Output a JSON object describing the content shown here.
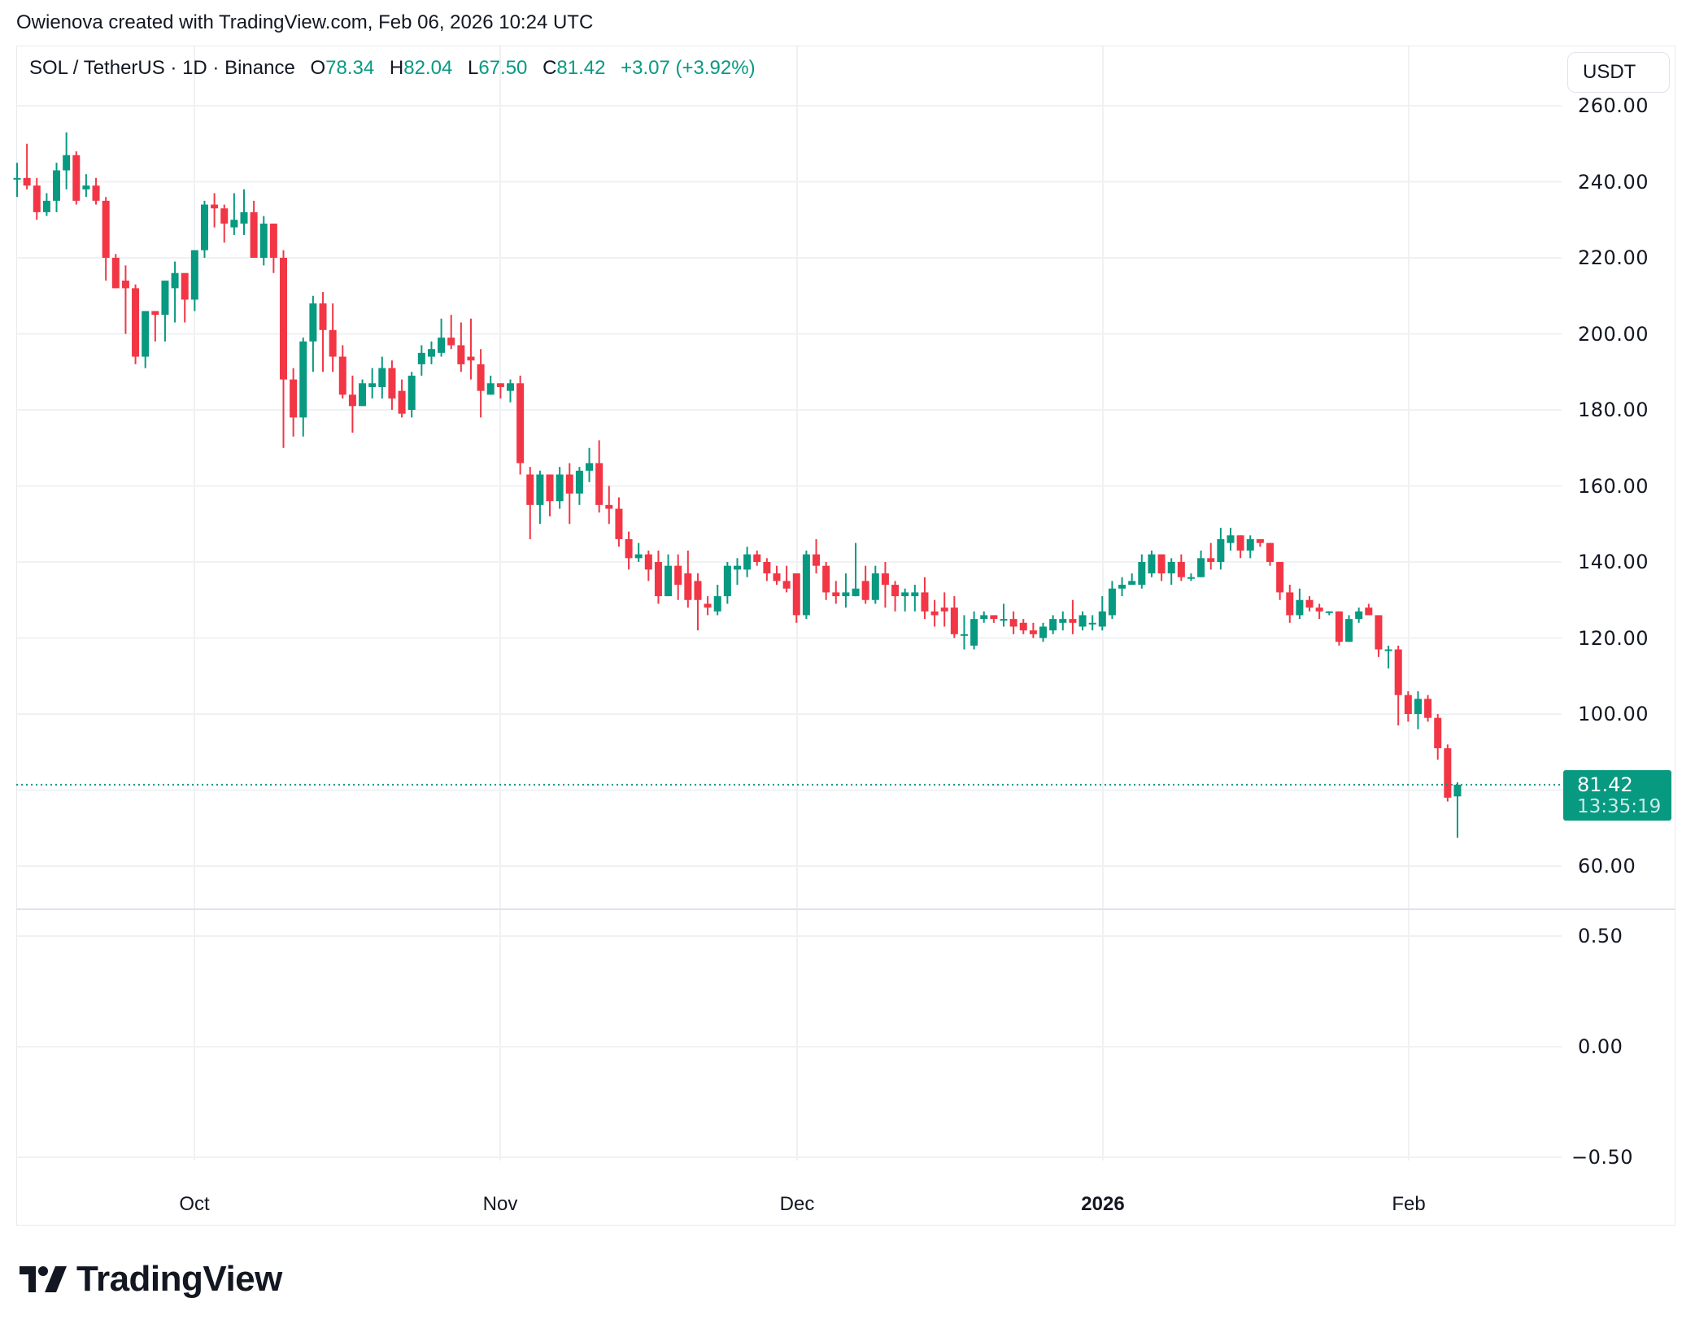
{
  "attribution": "Owienova created with TradingView.com, Feb 06, 2026 10:24 UTC",
  "legend": {
    "symbol": "SOL / TetherUS · 1D · Binance",
    "open_label": "O",
    "open": "78.34",
    "high_label": "H",
    "high": "82.04",
    "low_label": "L",
    "low": "67.50",
    "close_label": "C",
    "close": "81.42",
    "change": "+3.07 (+3.92%)"
  },
  "currency_button": "USDT",
  "price_axis": [
    "260.00",
    "240.00",
    "220.00",
    "200.00",
    "180.00",
    "160.00",
    "140.00",
    "120.00",
    "100.00",
    "60.00"
  ],
  "indicator_axis": [
    "0.50",
    "0.00",
    "−0.50"
  ],
  "time_axis": [
    {
      "label": "Oct",
      "bold": false
    },
    {
      "label": "Nov",
      "bold": false
    },
    {
      "label": "Dec",
      "bold": false
    },
    {
      "label": "2026",
      "bold": true
    },
    {
      "label": "Feb",
      "bold": false
    }
  ],
  "last_price_tag": {
    "price": "81.42",
    "countdown": "13:35:19"
  },
  "colors": {
    "up": "#089981",
    "down": "#F23645",
    "grid": "#F0F1F3",
    "text": "#131722"
  },
  "logo_text": "TradingView",
  "chart_data": {
    "type": "candlestick",
    "title": "SOL / TetherUS · 1D · Binance",
    "xlabel": "",
    "ylabel": "USDT",
    "ylim": [
      52,
      268
    ],
    "grid": true,
    "x_ticks": [
      "Oct",
      "Nov",
      "Dec",
      "2026",
      "Feb"
    ],
    "y_ticks": [
      60,
      100,
      120,
      140,
      160,
      180,
      200,
      220,
      240,
      260
    ],
    "last_close": 81.42,
    "start_date": "Sep 13",
    "end_date": "Feb 06",
    "ohlc": [
      [
        241,
        245,
        236,
        241
      ],
      [
        241,
        250,
        238,
        239
      ],
      [
        239,
        241,
        230,
        232
      ],
      [
        232,
        237,
        231,
        235
      ],
      [
        235,
        245,
        232,
        243
      ],
      [
        243,
        253,
        238,
        247
      ],
      [
        247,
        248,
        234,
        235
      ],
      [
        238,
        242,
        236,
        239
      ],
      [
        239,
        241,
        234,
        235
      ],
      [
        235,
        236,
        214,
        220
      ],
      [
        220,
        221,
        212,
        212
      ],
      [
        214,
        218,
        200,
        212
      ],
      [
        212,
        213,
        192,
        194
      ],
      [
        194,
        206,
        191,
        206
      ],
      [
        206,
        206,
        198,
        205
      ],
      [
        205,
        214,
        198,
        214
      ],
      [
        212,
        219,
        203,
        216
      ],
      [
        216,
        215,
        203,
        209
      ],
      [
        209,
        222,
        206,
        222
      ],
      [
        222,
        235,
        220,
        234
      ],
      [
        234,
        237,
        228,
        233
      ],
      [
        233,
        234,
        224,
        229
      ],
      [
        228,
        237,
        226,
        230
      ],
      [
        229,
        238,
        226,
        232
      ],
      [
        232,
        235,
        220,
        220
      ],
      [
        220,
        231,
        218,
        229
      ],
      [
        229,
        229,
        216,
        220
      ],
      [
        220,
        222,
        170,
        188
      ],
      [
        188,
        191,
        173,
        178
      ],
      [
        178,
        199,
        173,
        198
      ],
      [
        198,
        210,
        190,
        208
      ],
      [
        208,
        211,
        190,
        201
      ],
      [
        201,
        208,
        190,
        194
      ],
      [
        194,
        197,
        183,
        184
      ],
      [
        184,
        189,
        174,
        181
      ],
      [
        181,
        188,
        181,
        187
      ],
      [
        186,
        191,
        183,
        187
      ],
      [
        186,
        194,
        183,
        191
      ],
      [
        191,
        193,
        180,
        183
      ],
      [
        185,
        188,
        178,
        179
      ],
      [
        180,
        190,
        178,
        189
      ],
      [
        192,
        197,
        189,
        195
      ],
      [
        194,
        198,
        192,
        196
      ],
      [
        195,
        204,
        194,
        199
      ],
      [
        199,
        205,
        196,
        197
      ],
      [
        197,
        203,
        190,
        192
      ],
      [
        194,
        204,
        188,
        193
      ],
      [
        192,
        196,
        178,
        185
      ],
      [
        184,
        189,
        184,
        187
      ],
      [
        187,
        187,
        183,
        186
      ],
      [
        185,
        188,
        182,
        187
      ],
      [
        187,
        189,
        163,
        166
      ],
      [
        163,
        165,
        146,
        155
      ],
      [
        155,
        164,
        150,
        163
      ],
      [
        163,
        163,
        152,
        156
      ],
      [
        156,
        165,
        154,
        163
      ],
      [
        163,
        166,
        150,
        158
      ],
      [
        158,
        165,
        155,
        164
      ],
      [
        164,
        170,
        161,
        166
      ],
      [
        166,
        172,
        153,
        155
      ],
      [
        155,
        160,
        150,
        154
      ],
      [
        154,
        157,
        144,
        146
      ],
      [
        146,
        148,
        138,
        141
      ],
      [
        141,
        145,
        140,
        142
      ],
      [
        142,
        143,
        135,
        138
      ],
      [
        140,
        143,
        129,
        131
      ],
      [
        131,
        142,
        131,
        139
      ],
      [
        139,
        142,
        130,
        134
      ],
      [
        137,
        143,
        128,
        130
      ],
      [
        135,
        137,
        122,
        130
      ],
      [
        129,
        131,
        126,
        128
      ],
      [
        127,
        134,
        126,
        131
      ],
      [
        131,
        140,
        129,
        139
      ],
      [
        138,
        141,
        134,
        139
      ],
      [
        138,
        144,
        136,
        142
      ],
      [
        142,
        143,
        139,
        140
      ],
      [
        140,
        141,
        135,
        137
      ],
      [
        137,
        139,
        134,
        135
      ],
      [
        135,
        139,
        132,
        133
      ],
      [
        137,
        137,
        124,
        126
      ],
      [
        126,
        143,
        125,
        142
      ],
      [
        142,
        146,
        137,
        139
      ],
      [
        139,
        140,
        130,
        132
      ],
      [
        132,
        135,
        129,
        131
      ],
      [
        131,
        137,
        128,
        132
      ],
      [
        131,
        145,
        131,
        133
      ],
      [
        135,
        139,
        129,
        130
      ],
      [
        130,
        139,
        129,
        137
      ],
      [
        137,
        140,
        128,
        134
      ],
      [
        134,
        135,
        127,
        131
      ],
      [
        131,
        133,
        127,
        132
      ],
      [
        131,
        134,
        127,
        132
      ],
      [
        132,
        136,
        125,
        127
      ],
      [
        127,
        130,
        123,
        126
      ],
      [
        128,
        132,
        123,
        127
      ],
      [
        128,
        131,
        120,
        121
      ],
      [
        121,
        126,
        117,
        121
      ],
      [
        118,
        127,
        117,
        125
      ],
      [
        125,
        127,
        124,
        126
      ],
      [
        126,
        126,
        124,
        125
      ],
      [
        125,
        129,
        123,
        125
      ],
      [
        125,
        127,
        121,
        123
      ],
      [
        124,
        125,
        121,
        122
      ],
      [
        122,
        124,
        120,
        121
      ],
      [
        120,
        124,
        119,
        123
      ],
      [
        122,
        126,
        121,
        125
      ],
      [
        124,
        127,
        122,
        125
      ],
      [
        125,
        130,
        121,
        124
      ],
      [
        123,
        127,
        122,
        126
      ],
      [
        124,
        126,
        122,
        124
      ],
      [
        123,
        131,
        122,
        127
      ],
      [
        126,
        135,
        125,
        133
      ],
      [
        133,
        136,
        131,
        134
      ],
      [
        134,
        137,
        134,
        135
      ],
      [
        134,
        142,
        133,
        140
      ],
      [
        137,
        143,
        136,
        142
      ],
      [
        142,
        142,
        135,
        137
      ],
      [
        137,
        141,
        134,
        140
      ],
      [
        140,
        142,
        135,
        136
      ],
      [
        136,
        137,
        135,
        136
      ],
      [
        136,
        143,
        136,
        141
      ],
      [
        141,
        145,
        138,
        140
      ],
      [
        140,
        149,
        138,
        146
      ],
      [
        145,
        149,
        143,
        147
      ],
      [
        147,
        147,
        141,
        143
      ],
      [
        143,
        147,
        141,
        146
      ],
      [
        146,
        146,
        144,
        145
      ],
      [
        145,
        145,
        139,
        140
      ],
      [
        140,
        140,
        130,
        132
      ],
      [
        132,
        134,
        124,
        126
      ],
      [
        126,
        133,
        125,
        130
      ],
      [
        130,
        131,
        127,
        128
      ],
      [
        128,
        129,
        125,
        127
      ],
      [
        127,
        127,
        126,
        127
      ],
      [
        127,
        127,
        118,
        119
      ],
      [
        119,
        126,
        119,
        125
      ],
      [
        125,
        128,
        124,
        127
      ],
      [
        128,
        129,
        126,
        126
      ],
      [
        126,
        126,
        115,
        117
      ],
      [
        117,
        118,
        112,
        117
      ],
      [
        117,
        118,
        97,
        105
      ],
      [
        105,
        106,
        98,
        100
      ],
      [
        100,
        106,
        96,
        104
      ],
      [
        104,
        105,
        98,
        99
      ],
      [
        99,
        100,
        88,
        91
      ],
      [
        91,
        92,
        77,
        78
      ],
      [
        78.34,
        82.04,
        67.5,
        81.42
      ]
    ]
  }
}
